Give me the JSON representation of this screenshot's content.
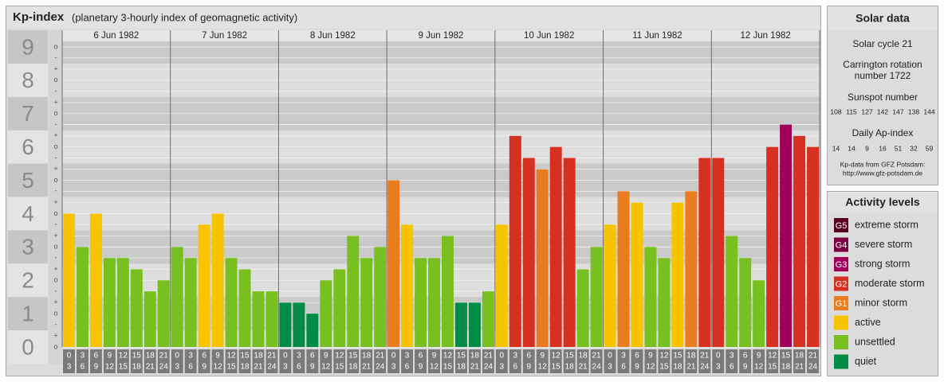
{
  "chart_data": {
    "type": "bar",
    "title": "Kp-index",
    "subtitle": "(planetary 3-hourly index of geomagnetic activity)",
    "ylim": [
      0,
      9.5
    ],
    "yticks": [
      0,
      1,
      2,
      3,
      4,
      5,
      6,
      7,
      8,
      9
    ],
    "yticks_minor": [
      {
        "value": 0,
        "label": "o"
      },
      {
        "value": 0.33,
        "label": "+"
      },
      {
        "value": 0.67,
        "label": "-"
      },
      {
        "value": 1,
        "label": "o"
      },
      {
        "value": 1.33,
        "label": "+"
      },
      {
        "value": 1.67,
        "label": "-"
      },
      {
        "value": 2,
        "label": "o"
      },
      {
        "value": 2.33,
        "label": "+"
      },
      {
        "value": 2.67,
        "label": "-"
      },
      {
        "value": 3,
        "label": "o"
      },
      {
        "value": 3.33,
        "label": "+"
      },
      {
        "value": 3.67,
        "label": "-"
      },
      {
        "value": 4,
        "label": "o"
      },
      {
        "value": 4.33,
        "label": "+"
      },
      {
        "value": 4.67,
        "label": "-"
      },
      {
        "value": 5,
        "label": "o"
      },
      {
        "value": 5.33,
        "label": "+"
      },
      {
        "value": 5.67,
        "label": "-"
      },
      {
        "value": 6,
        "label": "o"
      },
      {
        "value": 6.33,
        "label": "+"
      },
      {
        "value": 6.67,
        "label": "-"
      },
      {
        "value": 7,
        "label": "o"
      },
      {
        "value": 7.33,
        "label": "+"
      },
      {
        "value": 7.67,
        "label": "-"
      },
      {
        "value": 8,
        "label": "o"
      },
      {
        "value": 8.33,
        "label": "+"
      },
      {
        "value": 8.67,
        "label": "-"
      },
      {
        "value": 9,
        "label": "o"
      }
    ],
    "grid": true,
    "hours_start": [
      0,
      3,
      6,
      9,
      12,
      15,
      18,
      21
    ],
    "hours_end": [
      3,
      6,
      9,
      12,
      15,
      18,
      21,
      24
    ],
    "days": [
      {
        "label": "6 Jun 1982",
        "values": [
          4,
          3,
          4,
          2.67,
          2.67,
          2.33,
          1.67,
          2
        ],
        "colors": [
          "#f8c400",
          "#78c020",
          "#f8c400",
          "#78c020",
          "#78c020",
          "#78c020",
          "#78c020",
          "#78c020"
        ]
      },
      {
        "label": "7 Jun 1982",
        "values": [
          3,
          2.67,
          3.67,
          4,
          2.67,
          2.33,
          1.67,
          1.67
        ],
        "colors": [
          "#78c020",
          "#78c020",
          "#f8c400",
          "#f8c400",
          "#78c020",
          "#78c020",
          "#78c020",
          "#78c020"
        ]
      },
      {
        "label": "8 Jun 1982",
        "values": [
          1.33,
          1.33,
          1,
          2,
          2.33,
          3.33,
          2.67,
          3
        ],
        "colors": [
          "#008c46",
          "#008c46",
          "#008c46",
          "#78c020",
          "#78c020",
          "#78c020",
          "#78c020",
          "#78c020"
        ]
      },
      {
        "label": "9 Jun 1982",
        "values": [
          5,
          3.67,
          2.67,
          2.67,
          3.33,
          1.33,
          1.33,
          1.67
        ],
        "colors": [
          "#e87c1e",
          "#f8c400",
          "#78c020",
          "#78c020",
          "#78c020",
          "#008c46",
          "#008c46",
          "#78c020"
        ]
      },
      {
        "label": "10 Jun 1982",
        "values": [
          3.67,
          6.33,
          5.67,
          5.33,
          6,
          5.67,
          2.33,
          3
        ],
        "colors": [
          "#f8c400",
          "#d83020",
          "#d83020",
          "#e87c1e",
          "#d83020",
          "#d83020",
          "#78c020",
          "#78c020"
        ]
      },
      {
        "label": "11 Jun 1982",
        "values": [
          3.67,
          4.67,
          4.33,
          3,
          2.67,
          4.33,
          4.67,
          5.67
        ],
        "colors": [
          "#f8c400",
          "#e87c1e",
          "#f8c400",
          "#78c020",
          "#78c020",
          "#f8c400",
          "#e87c1e",
          "#d83020"
        ]
      },
      {
        "label": "12 Jun 1982",
        "values": [
          5.67,
          3.33,
          2.67,
          2,
          6,
          6.67,
          6.33,
          6
        ],
        "colors": [
          "#d83020",
          "#78c020",
          "#78c020",
          "#78c020",
          "#d83020",
          "#a0005a",
          "#d83020",
          "#d83020"
        ]
      }
    ]
  },
  "solar_data": {
    "title": "Solar data",
    "solar_cycle": "Solar cycle 21",
    "carrington": [
      "Carrington rotation",
      "number 1722"
    ],
    "sunspot_title": "Sunspot number",
    "sunspot": [
      108,
      115,
      127,
      142,
      147,
      138,
      144
    ],
    "ap_title": "Daily Ap-index",
    "ap": [
      14,
      14,
      9,
      16,
      51,
      32,
      59
    ],
    "source": [
      "Kp-data from GFZ Potsdam:",
      "http://www.gfz-potsdam.de"
    ]
  },
  "activity_levels": {
    "title": "Activity levels",
    "items": [
      {
        "badge": "G5",
        "label": "extreme storm",
        "color": "#5a0020"
      },
      {
        "badge": "G4",
        "label": "severe storm",
        "color": "#7c0044"
      },
      {
        "badge": "G3",
        "label": "strong storm",
        "color": "#a0005a"
      },
      {
        "badge": "G2",
        "label": "moderate storm",
        "color": "#d83020"
      },
      {
        "badge": "G1",
        "label": "minor storm",
        "color": "#e87c1e"
      },
      {
        "label": "active",
        "color": "#f8c400"
      },
      {
        "label": "unsettled",
        "color": "#78c020"
      },
      {
        "label": "quiet",
        "color": "#008c46"
      }
    ]
  }
}
